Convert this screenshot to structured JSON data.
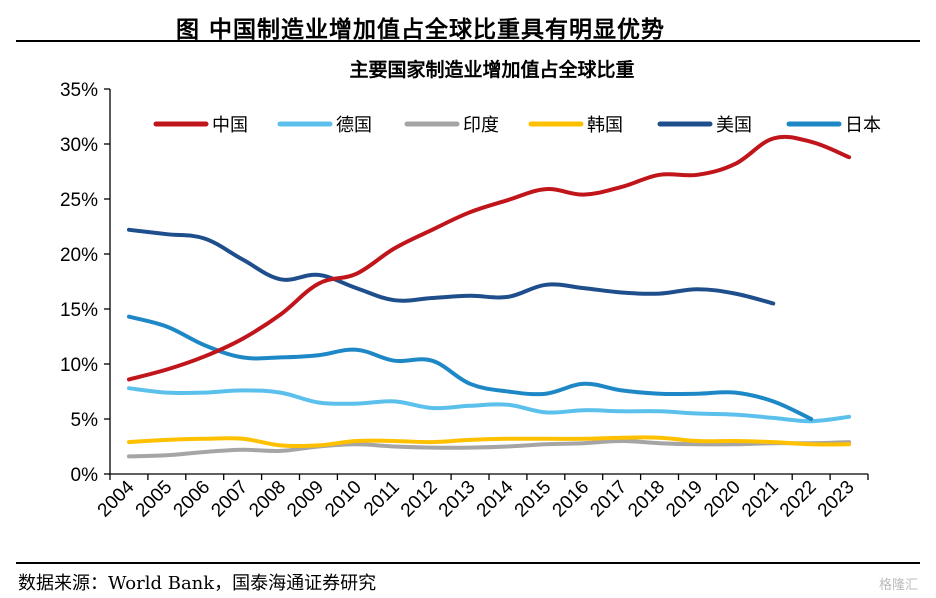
{
  "header": {
    "title": "图    中国制造业增加值占全球比重具有明显优势"
  },
  "footer": {
    "source": "数据来源：World Bank，国泰海通证券研究",
    "watermark": "格隆汇"
  },
  "chart_data": {
    "type": "line",
    "title": "主要国家制造业增加值占全球比重",
    "xlabel": "",
    "ylabel": "",
    "x": [
      "2004",
      "2005",
      "2006",
      "2007",
      "2008",
      "2009",
      "2010",
      "2011",
      "2012",
      "2013",
      "2014",
      "2015",
      "2016",
      "2017",
      "2018",
      "2019",
      "2020",
      "2021",
      "2022",
      "2023"
    ],
    "ylim": [
      0,
      35
    ],
    "yticks": [
      0,
      5,
      10,
      15,
      20,
      25,
      30,
      35
    ],
    "ytick_labels": [
      "0%",
      "5%",
      "10%",
      "15%",
      "20%",
      "25%",
      "30%",
      "35%"
    ],
    "grid": false,
    "legend_position": "top",
    "series": [
      {
        "name": "中国",
        "color": "#C0151B",
        "values": [
          8.6,
          9.5,
          10.7,
          12.3,
          14.5,
          17.3,
          18.2,
          20.5,
          22.2,
          23.8,
          24.9,
          25.9,
          25.4,
          26.1,
          27.2,
          27.2,
          28.2,
          30.5,
          30.2,
          28.8
        ]
      },
      {
        "name": "德国",
        "color": "#5BC0EB",
        "values": [
          7.8,
          7.4,
          7.4,
          7.6,
          7.4,
          6.5,
          6.4,
          6.6,
          6.0,
          6.2,
          6.3,
          5.6,
          5.8,
          5.7,
          5.7,
          5.5,
          5.4,
          5.1,
          4.8,
          5.2
        ]
      },
      {
        "name": "印度",
        "color": "#A5A5A5",
        "values": [
          1.6,
          1.7,
          2.0,
          2.2,
          2.1,
          2.5,
          2.7,
          2.5,
          2.4,
          2.4,
          2.5,
          2.7,
          2.8,
          3.0,
          2.8,
          2.7,
          2.7,
          2.8,
          2.8,
          2.9
        ]
      },
      {
        "name": "韩国",
        "color": "#FFC000",
        "values": [
          2.9,
          3.1,
          3.2,
          3.2,
          2.6,
          2.6,
          3.0,
          3.0,
          2.9,
          3.1,
          3.2,
          3.2,
          3.2,
          3.3,
          3.3,
          3.0,
          3.0,
          2.9,
          2.7,
          2.7
        ]
      },
      {
        "name": "美国",
        "color": "#1F4E8C",
        "values": [
          22.2,
          21.8,
          21.4,
          19.5,
          17.7,
          18.1,
          16.9,
          15.8,
          16.0,
          16.2,
          16.1,
          17.2,
          16.9,
          16.5,
          16.4,
          16.8,
          16.4,
          15.5,
          null,
          null
        ]
      },
      {
        "name": "日本",
        "color": "#1E88C7",
        "values": [
          14.3,
          13.4,
          11.7,
          10.6,
          10.6,
          10.8,
          11.3,
          10.3,
          10.3,
          8.2,
          7.5,
          7.3,
          8.2,
          7.6,
          7.3,
          7.3,
          7.4,
          6.6,
          5.0,
          null
        ]
      }
    ]
  }
}
